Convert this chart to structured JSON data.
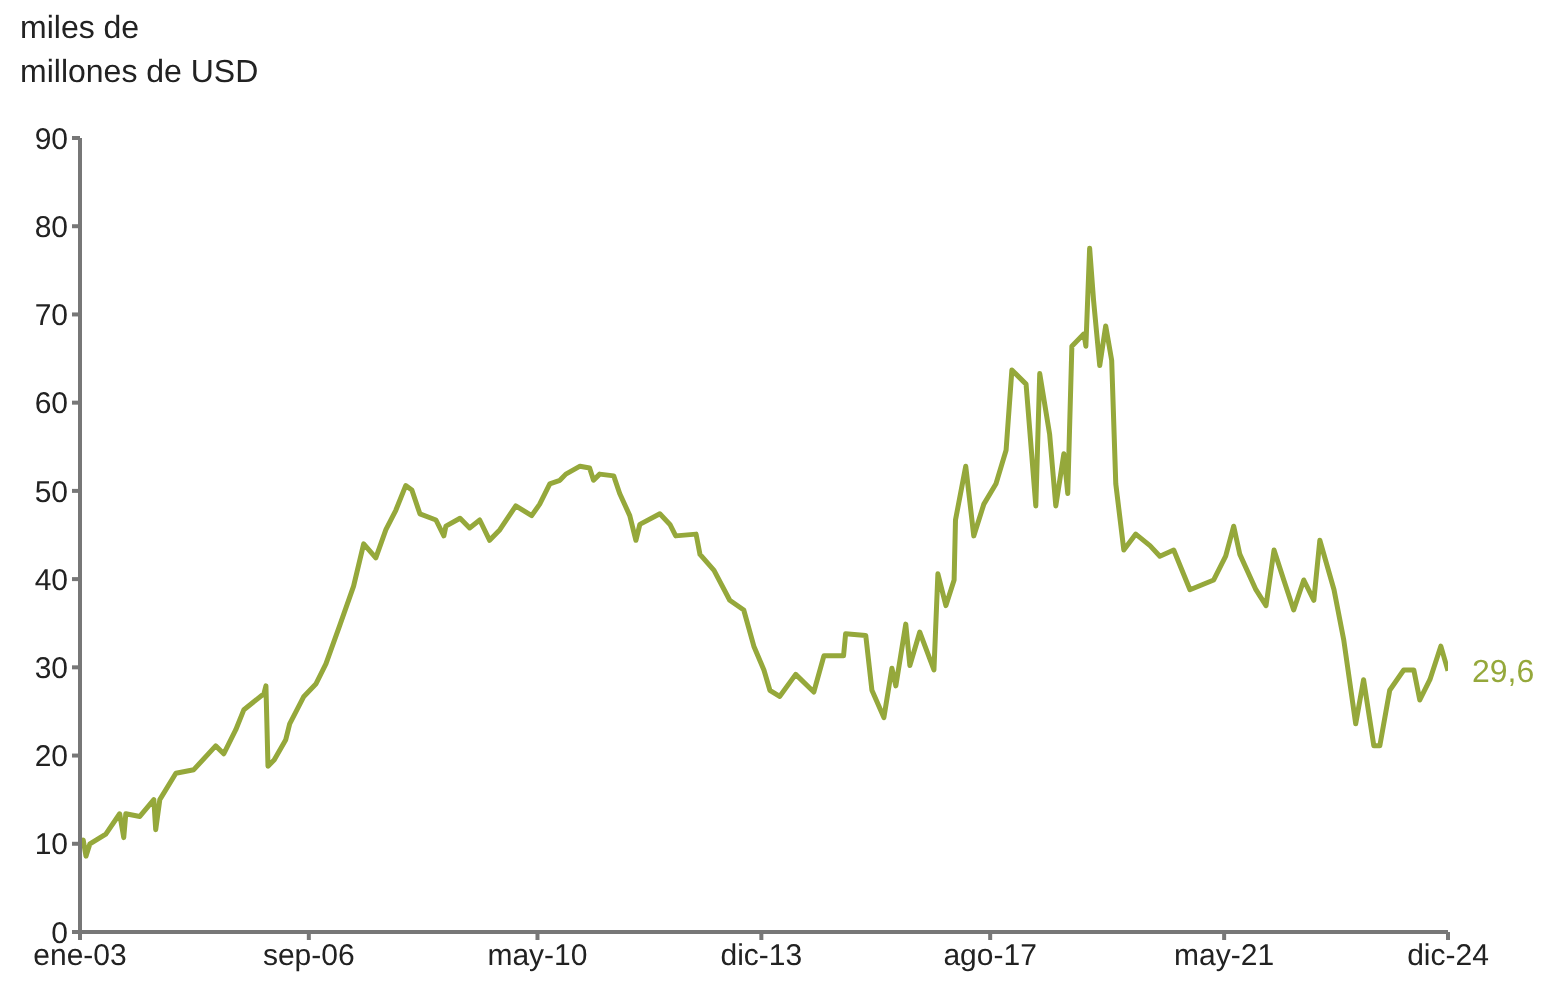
{
  "chart_data": {
    "type": "line",
    "ylabel": "miles de\nmillones de USD",
    "x": [
      "2003-01-01",
      "2003-01-20",
      "2003-02-05",
      "2003-02-28",
      "2003-06-01",
      "2003-08-21",
      "2003-09-14",
      "2003-09-26",
      "2003-12-17",
      "2004-03-08",
      "2004-03-19",
      "2004-04-12",
      "2004-07-15",
      "2004-10-28",
      "2005-03-05",
      "2005-04-21",
      "2005-06-30",
      "2005-08-17",
      "2005-12-12",
      "2005-12-24",
      "2006-01-05",
      "2006-02-10",
      "2006-04-19",
      "2006-05-12",
      "2006-08-03",
      "2006-10-12",
      "2006-12-10",
      "2007-02-28",
      "2007-05-21",
      "2007-07-19",
      "2007-09-28",
      "2007-11-26",
      "2008-01-23",
      "2008-03-21",
      "2008-04-26",
      "2008-06-12",
      "2008-09-14",
      "2008-10-30",
      "2008-11-11",
      "2009-02-02",
      "2009-03-30",
      "2009-05-28",
      "2009-07-25",
      "2009-09-23",
      "2009-12-25",
      "2010-03-28",
      "2010-05-14",
      "2010-07-12",
      "2010-09-09",
      "2010-10-14",
      "2011-01-05",
      "2011-03-02",
      "2011-03-25",
      "2011-04-30",
      "2011-07-21",
      "2011-08-25",
      "2011-10-23",
      "2011-11-28",
      "2011-12-21",
      "2012-04-16",
      "2012-06-14",
      "2012-07-18",
      "2012-11-14",
      "2012-12-07",
      "2013-02-27",
      "2013-05-30",
      "2013-08-20",
      "2013-10-18",
      "2013-12-16",
      "2014-01-20",
      "2014-03-18",
      "2014-06-20",
      "2014-10-04",
      "2014-12-02",
      "2015-03-27",
      "2015-04-08",
      "2015-08-04",
      "2015-09-09",
      "2015-11-18",
      "2016-01-04",
      "2016-01-27",
      "2016-03-25",
      "2016-04-18",
      "2016-06-15",
      "2016-09-06",
      "2016-09-29",
      "2016-11-15",
      "2017-01-02",
      "2017-01-10",
      "2017-03-11",
      "2017-04-27",
      "2017-06-25",
      "2017-09-04",
      "2017-11-02",
      "2017-12-06",
      "2018-02-27",
      "2018-04-25",
      "2018-05-18",
      "2018-07-15",
      "2018-08-20",
      "2018-10-06",
      "2018-10-29",
      "2018-11-22",
      "2019-02-01",
      "2019-02-12",
      "2019-03-06",
      "2019-03-29",
      "2019-05-04",
      "2019-06-08",
      "2019-07-13",
      "2019-08-06",
      "2019-09-22",
      "2019-12-01",
      "2020-02-22",
      "2020-04-20",
      "2020-07-10",
      "2020-10-13",
      "2021-03-01",
      "2021-05-10",
      "2021-06-26",
      "2021-08-01",
      "2021-11-03",
      "2022-01-01",
      "2022-02-17",
      "2022-04-15",
      "2022-06-12",
      "2022-08-10",
      "2022-10-08",
      "2022-11-12",
      "2023-02-03",
      "2023-04-01",
      "2023-06-10",
      "2023-07-26",
      "2023-09-24",
      "2023-10-29",
      "2023-12-26",
      "2024-03-17",
      "2024-05-15",
      "2024-06-19",
      "2024-08-17",
      "2024-10-20",
      "2024-12-01"
    ],
    "series": [
      {
        "color": "#95a83b",
        "values": [
          9.8,
          10.4,
          8.6,
          10,
          11.1,
          13.4,
          10.7,
          13.4,
          13.1,
          15,
          11.6,
          15,
          18,
          18.4,
          21.1,
          20.2,
          22.9,
          25.2,
          27,
          27.9,
          18.8,
          19.5,
          21.8,
          23.6,
          26.7,
          28.1,
          30.4,
          34.7,
          39.2,
          44,
          42.4,
          45.6,
          47.8,
          50.6,
          50.1,
          47.4,
          46.7,
          44.9,
          46,
          46.9,
          45.8,
          46.7,
          44.4,
          45.6,
          48.3,
          47.2,
          48.5,
          50.8,
          51.2,
          51.9,
          52.8,
          52.6,
          51.2,
          51.9,
          51.7,
          49.7,
          47.2,
          44.4,
          46.2,
          47.4,
          46.2,
          44.9,
          45.1,
          42.8,
          41,
          37.6,
          36.5,
          32.4,
          29.7,
          27.4,
          26.7,
          29.2,
          27.2,
          31.3,
          31.3,
          33.8,
          33.6,
          27.4,
          24.3,
          29.9,
          27.9,
          34.9,
          30.2,
          34,
          29.7,
          40.6,
          37,
          39.9,
          46.7,
          52.8,
          44.9,
          48.5,
          50.8,
          54.6,
          63.7,
          62.1,
          48.3,
          63.3,
          56.4,
          48.3,
          54.2,
          49.7,
          66.4,
          67.8,
          66.4,
          77.5,
          71.6,
          64.2,
          68.7,
          64.8,
          50.8,
          43.3,
          45.1,
          43.8,
          42.6,
          43.3,
          38.8,
          39.9,
          42.6,
          46,
          42.8,
          38.8,
          37,
          43.3,
          39.9,
          36.5,
          39.9,
          37.6,
          44.4,
          38.8,
          33.1,
          23.6,
          28.6,
          21.1,
          21.1,
          27.4,
          29.7,
          29.7,
          26.3,
          28.6,
          32.4,
          29.6
        ]
      }
    ],
    "xlim": [
      "2003-01-01",
      "2024-12-01"
    ],
    "xticks": [
      {
        "value": "2003-01",
        "label": "ene-03"
      },
      {
        "value": "2006-09",
        "label": "sep-06"
      },
      {
        "value": "2010-05",
        "label": "may-10"
      },
      {
        "value": "2013-12",
        "label": "dic-13"
      },
      {
        "value": "2017-08",
        "label": "ago-17"
      },
      {
        "value": "2021-05",
        "label": "may-21"
      },
      {
        "value": "2024-12",
        "label": "dic-24"
      }
    ],
    "ylim": [
      0,
      90
    ],
    "yticks": [
      0,
      10,
      20,
      30,
      40,
      50,
      60,
      70,
      80,
      90
    ],
    "grid": false,
    "legend": false,
    "marker": "none",
    "line_style": "solid",
    "annotations": [
      {
        "text": "29,6",
        "x": "2024-12-01",
        "y": 29.6
      }
    ]
  }
}
